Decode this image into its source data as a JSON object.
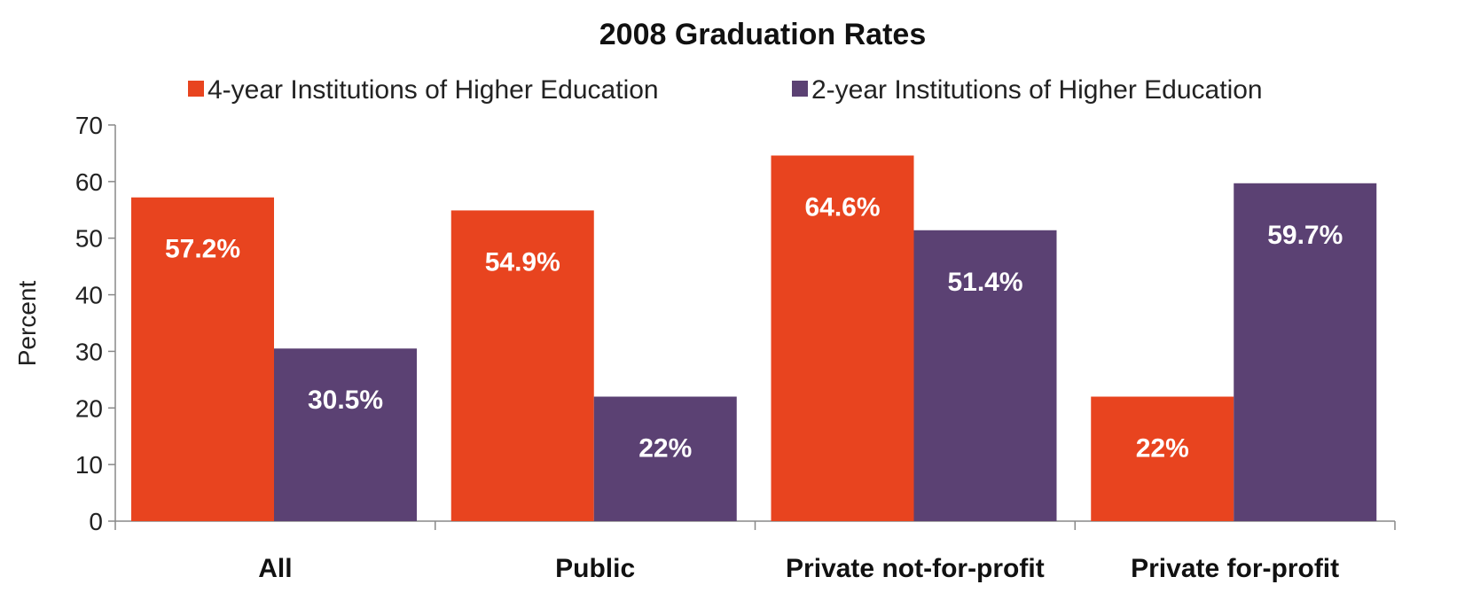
{
  "chart_data": {
    "type": "bar",
    "title": "2008 Graduation Rates",
    "ylabel": "Percent",
    "xlabel": "",
    "categories": [
      "All",
      "Public",
      "Private not-for-profit",
      "Private for-profit"
    ],
    "series": [
      {
        "name": "4-year Institutions of Higher Education",
        "color": "#E8441F",
        "values": [
          57.2,
          54.9,
          64.6,
          22
        ],
        "labels": [
          "57.2%",
          "54.9%",
          "64.6%",
          "22%"
        ]
      },
      {
        "name": "2-year Institutions of Higher Education",
        "color": "#5B4173",
        "values": [
          30.5,
          22,
          51.4,
          59.7
        ],
        "labels": [
          "30.5%",
          "22%",
          "51.4%",
          "59.7%"
        ]
      }
    ],
    "ylim": [
      0,
      70
    ],
    "yticks": [
      0,
      10,
      20,
      30,
      40,
      50,
      60,
      70
    ],
    "grid": false,
    "legend_position": "top"
  }
}
